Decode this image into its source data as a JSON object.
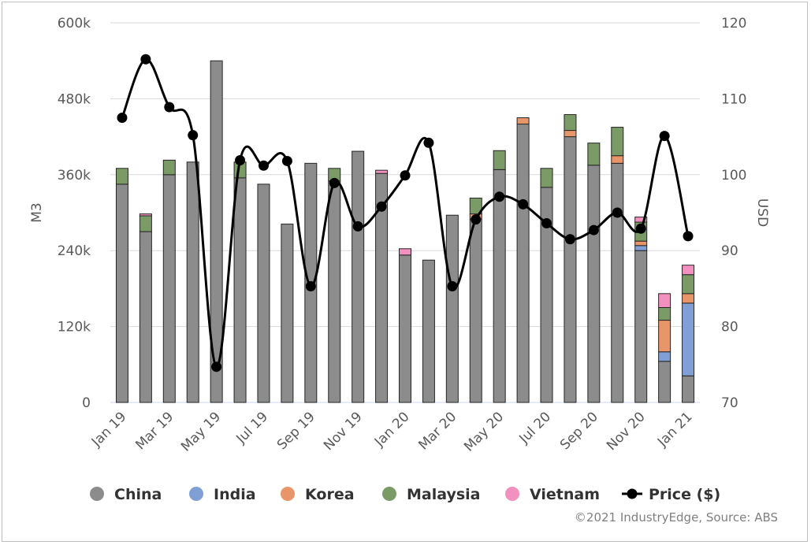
{
  "chart_data": {
    "type": "bar",
    "stacked": true,
    "categories": [
      "Jan 19",
      "Feb 19",
      "Mar 19",
      "Apr 19",
      "May 19",
      "Jun 19",
      "Jul 19",
      "Aug 19",
      "Sep 19",
      "Oct 19",
      "Nov 19",
      "Dec 19",
      "Jan 20",
      "Feb 20",
      "Mar 20",
      "Apr 20",
      "May 20",
      "Jun 20",
      "Jul 20",
      "Aug 20",
      "Sep 20",
      "Oct 20",
      "Nov 20",
      "Dec 20",
      "Jan 21"
    ],
    "x_tick_labels": [
      "Jan 19",
      "",
      "Mar 19",
      "",
      "May 19",
      "",
      "Jul 19",
      "",
      "Sep 19",
      "",
      "Nov 19",
      "",
      "Jan 20",
      "",
      "Mar 20",
      "",
      "May 20",
      "",
      "Jul 20",
      "",
      "Sep 20",
      "",
      "Nov 20",
      "",
      "Jan 21"
    ],
    "series": [
      {
        "name": "China",
        "color": "#8c8c8c",
        "values": [
          345000,
          270000,
          360000,
          380000,
          540000,
          355000,
          345000,
          282000,
          378000,
          350000,
          397000,
          362000,
          233000,
          225000,
          296000,
          290000,
          368000,
          440000,
          340000,
          420000,
          375000,
          378000,
          240000,
          65000,
          42000
        ]
      },
      {
        "name": "India",
        "color": "#7f9fd5",
        "values": [
          0,
          0,
          0,
          0,
          0,
          0,
          0,
          0,
          0,
          0,
          0,
          0,
          0,
          0,
          0,
          0,
          0,
          0,
          0,
          0,
          0,
          0,
          8000,
          15000,
          115000
        ]
      },
      {
        "name": "Korea",
        "color": "#e9956a",
        "values": [
          0,
          0,
          0,
          0,
          0,
          0,
          0,
          0,
          0,
          0,
          0,
          0,
          0,
          0,
          0,
          8000,
          0,
          10000,
          0,
          10000,
          0,
          12000,
          7000,
          50000,
          15000
        ]
      },
      {
        "name": "Malaysia",
        "color": "#7a9a66",
        "values": [
          25000,
          25000,
          23000,
          0,
          0,
          25000,
          0,
          0,
          0,
          20000,
          0,
          0,
          0,
          0,
          0,
          25000,
          30000,
          0,
          30000,
          25000,
          35000,
          45000,
          30000,
          20000,
          30000
        ]
      },
      {
        "name": "Vietnam",
        "color": "#f291bf",
        "values": [
          0,
          3000,
          0,
          0,
          0,
          0,
          0,
          0,
          0,
          0,
          0,
          5000,
          10000,
          0,
          0,
          0,
          0,
          0,
          0,
          0,
          0,
          0,
          8000,
          22000,
          15000
        ]
      }
    ],
    "line_series": {
      "name": "Price ($)",
      "color": "#000000",
      "axis": "right",
      "values": [
        107.5,
        115.2,
        108.9,
        105.2,
        74.7,
        101.9,
        101.2,
        101.8,
        85.3,
        98.9,
        93.2,
        95.8,
        99.9,
        104.2,
        85.3,
        94.1,
        97.1,
        96.1,
        93.6,
        91.5,
        92.7,
        95.0,
        92.9,
        105.1,
        91.9
      ]
    },
    "ylabel": "M3",
    "y2label": "USD",
    "ylim": [
      0,
      600000
    ],
    "y2lim": [
      70,
      120
    ],
    "y_ticks": [
      "0",
      "120k",
      "240k",
      "360k",
      "480k",
      "600k"
    ],
    "y2_ticks": [
      "70",
      "80",
      "90",
      "100",
      "110",
      "120"
    ],
    "grid": true,
    "legend_position": "bottom",
    "legend": [
      "China",
      "India",
      "Korea",
      "Malaysia",
      "Vietnam",
      "Price ($)"
    ],
    "source": "©2021 IndustryEdge, Source: ABS"
  }
}
